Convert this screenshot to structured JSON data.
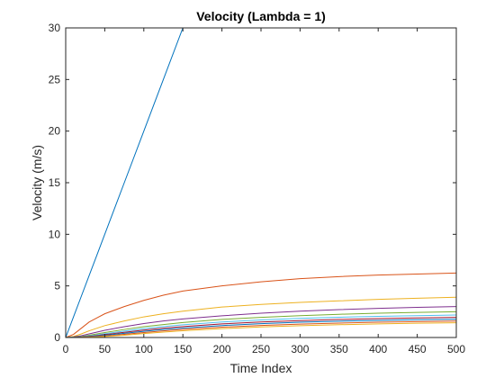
{
  "chart_data": {
    "type": "line",
    "title": "Velocity (Lambda = 1)",
    "xlabel": "Time Index",
    "ylabel": "Velocity (m/s)",
    "xlim": [
      0,
      500
    ],
    "ylim": [
      0,
      30
    ],
    "xticks": [
      "0",
      "50",
      "100",
      "150",
      "200",
      "250",
      "300",
      "350",
      "400",
      "450",
      "500"
    ],
    "yticks": [
      "0",
      "5",
      "10",
      "15",
      "20",
      "25",
      "30"
    ],
    "grid": false,
    "legend": "none",
    "x": [
      0,
      10,
      20,
      30,
      40,
      50,
      75,
      100,
      125,
      150,
      200,
      250,
      300,
      350,
      400,
      450,
      500
    ],
    "series": [
      {
        "color": "#0072BD",
        "values": [
          0,
          2,
          4,
          6,
          8,
          10,
          15,
          20,
          25,
          30,
          30,
          30,
          30,
          30,
          30,
          30,
          30
        ]
      },
      {
        "color": "#D95319",
        "values": [
          0,
          0.3,
          0.9,
          1.5,
          1.9,
          2.3,
          3.0,
          3.6,
          4.1,
          4.5,
          5.0,
          5.4,
          5.7,
          5.9,
          6.05,
          6.15,
          6.25
        ]
      },
      {
        "color": "#EDB120",
        "values": [
          0,
          0.1,
          0.35,
          0.65,
          0.9,
          1.15,
          1.6,
          2.0,
          2.3,
          2.55,
          2.95,
          3.2,
          3.4,
          3.55,
          3.7,
          3.8,
          3.9
        ]
      },
      {
        "color": "#7E2F8E",
        "values": [
          0,
          0.05,
          0.18,
          0.35,
          0.52,
          0.7,
          1.05,
          1.35,
          1.6,
          1.8,
          2.1,
          2.35,
          2.55,
          2.7,
          2.82,
          2.92,
          3.0
        ]
      },
      {
        "color": "#77AC30",
        "values": [
          0,
          0.03,
          0.1,
          0.22,
          0.35,
          0.48,
          0.78,
          1.05,
          1.25,
          1.45,
          1.75,
          1.95,
          2.12,
          2.25,
          2.35,
          2.43,
          2.5
        ]
      },
      {
        "color": "#4DBEEE",
        "values": [
          0,
          0.02,
          0.07,
          0.15,
          0.25,
          0.36,
          0.62,
          0.86,
          1.06,
          1.23,
          1.5,
          1.7,
          1.85,
          1.96,
          2.05,
          2.12,
          2.18
        ]
      },
      {
        "color": "#A2142F",
        "values": [
          0,
          0.01,
          0.05,
          0.11,
          0.19,
          0.28,
          0.5,
          0.72,
          0.9,
          1.06,
          1.32,
          1.5,
          1.64,
          1.75,
          1.83,
          1.9,
          1.95
        ]
      },
      {
        "color": "#0072BD",
        "values": [
          0,
          0.01,
          0.04,
          0.08,
          0.14,
          0.21,
          0.4,
          0.6,
          0.77,
          0.92,
          1.16,
          1.34,
          1.48,
          1.58,
          1.66,
          1.72,
          1.77
        ]
      },
      {
        "color": "#D95319",
        "values": [
          0,
          0.0,
          0.02,
          0.05,
          0.09,
          0.14,
          0.3,
          0.48,
          0.64,
          0.78,
          1.0,
          1.17,
          1.3,
          1.4,
          1.48,
          1.54,
          1.59
        ]
      },
      {
        "color": "#EDB120",
        "values": [
          0,
          0.0,
          0.01,
          0.03,
          0.06,
          0.1,
          0.22,
          0.38,
          0.52,
          0.65,
          0.86,
          1.02,
          1.14,
          1.24,
          1.32,
          1.38,
          1.43
        ]
      }
    ]
  }
}
